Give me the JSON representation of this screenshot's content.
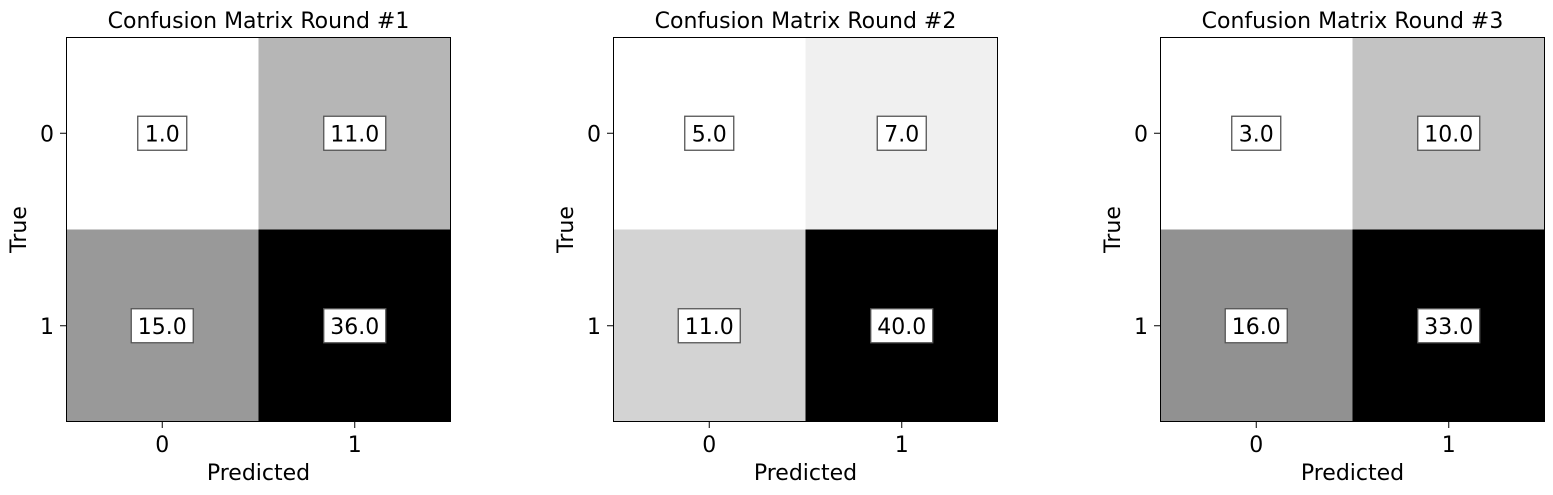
{
  "chart_data": [
    {
      "type": "heatmap",
      "title": "Confusion Matrix Round #1",
      "xlabel": "Predicted",
      "ylabel": "True",
      "x_categories": [
        "0",
        "1"
      ],
      "y_categories": [
        "0",
        "1"
      ],
      "values": [
        [
          1.0,
          11.0
        ],
        [
          15.0,
          36.0
        ]
      ],
      "value_labels": [
        [
          "1.0",
          "11.0"
        ],
        [
          "15.0",
          "36.0"
        ]
      ],
      "colormap": "grayscale, white (low) to black (high)",
      "grid": false,
      "legend": "none"
    },
    {
      "type": "heatmap",
      "title": "Confusion Matrix Round #2",
      "xlabel": "Predicted",
      "ylabel": "True",
      "x_categories": [
        "0",
        "1"
      ],
      "y_categories": [
        "0",
        "1"
      ],
      "values": [
        [
          5.0,
          7.0
        ],
        [
          11.0,
          40.0
        ]
      ],
      "value_labels": [
        [
          "5.0",
          "7.0"
        ],
        [
          "11.0",
          "40.0"
        ]
      ],
      "colormap": "grayscale, white (low) to black (high)",
      "grid": false,
      "legend": "none"
    },
    {
      "type": "heatmap",
      "title": "Confusion Matrix Round #3",
      "xlabel": "Predicted",
      "ylabel": "True",
      "x_categories": [
        "0",
        "1"
      ],
      "y_categories": [
        "0",
        "1"
      ],
      "values": [
        [
          3.0,
          10.0
        ],
        [
          16.0,
          33.0
        ]
      ],
      "value_labels": [
        [
          "3.0",
          "10.0"
        ],
        [
          "16.0",
          "33.0"
        ]
      ],
      "colormap": "grayscale, white (low) to black (high)",
      "grid": false,
      "legend": "none"
    }
  ]
}
